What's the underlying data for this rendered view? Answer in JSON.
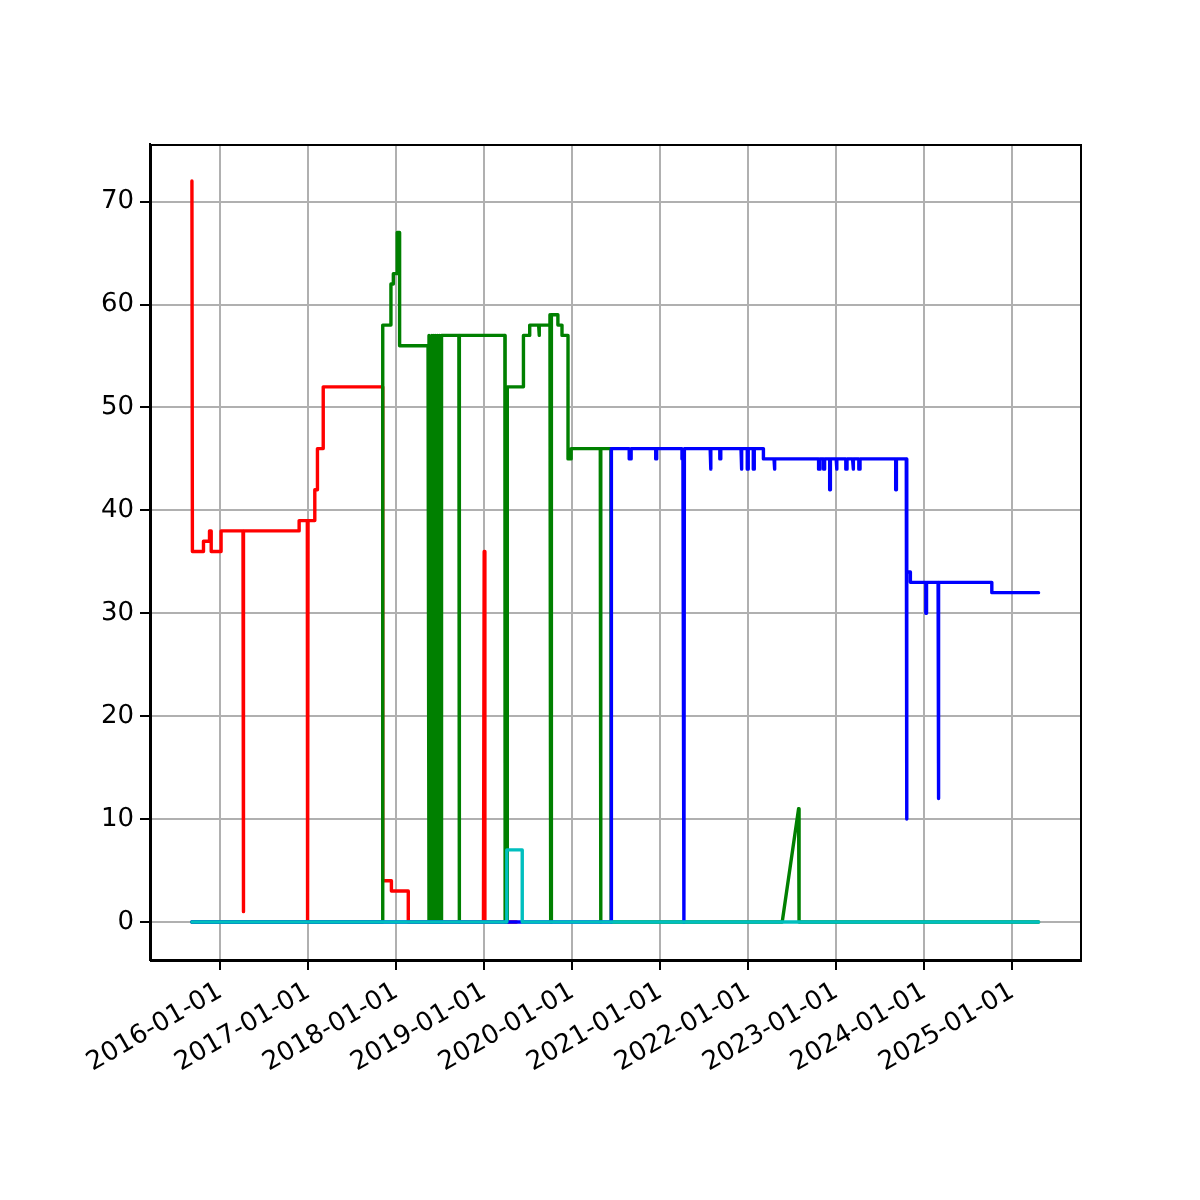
{
  "chart_data": {
    "type": "line",
    "xlim": [
      "2015-03-16",
      "2025-10-09"
    ],
    "ylim": [
      -3.7,
      75.6
    ],
    "xticks": [
      "2016-01-01",
      "2017-01-01",
      "2018-01-01",
      "2019-01-01",
      "2020-01-01",
      "2021-01-01",
      "2022-01-01",
      "2023-01-01",
      "2024-01-01",
      "2025-01-01"
    ],
    "yticks": [
      0,
      10,
      20,
      30,
      40,
      50,
      60,
      70
    ],
    "grid": true,
    "legend": false,
    "marker": "none",
    "series": [
      {
        "color": "#ff0000",
        "x": [
          "2015-09-06",
          "2015-09-08",
          "2015-10-24",
          "2015-10-24",
          "2015-11-18",
          "2015-11-18",
          "2015-11-25",
          "2015-11-25",
          "2016-01-05",
          "2016-01-05",
          "2016-04-05",
          "2016-04-06",
          "2016-04-08",
          "2016-11-24",
          "2016-11-24",
          "2016-12-28",
          "2016-12-29",
          "2016-12-31",
          "2017-01-28",
          "2017-01-28",
          "2017-02-08",
          "2017-02-08",
          "2017-03-04",
          "2017-03-04",
          "2017-11-06",
          "2017-11-06",
          "2017-12-12",
          "2017-12-12",
          "2018-02-20",
          "2018-02-20",
          "2018-12-29",
          "2019-01-01",
          "2019-01-04",
          "2019-05-15"
        ],
        "values": [
          72,
          36,
          36,
          37,
          37,
          38,
          38,
          36,
          36,
          38,
          38,
          1,
          38,
          38,
          39,
          39,
          0,
          39,
          39,
          42,
          42,
          46,
          46,
          52,
          52,
          4,
          4,
          3,
          3,
          0,
          0,
          36,
          0,
          0
        ]
      },
      {
        "color": "#008000",
        "x": [
          "2015-09-06",
          "2017-11-06",
          "2017-11-06",
          "2017-12-10",
          "2017-12-10",
          "2017-12-20",
          "2017-12-20",
          "2018-01-05",
          "2018-01-05",
          "2018-01-15",
          "2018-01-15",
          "2018-05-13",
          "2018-05-13",
          "2018-05-17",
          "2018-05-21",
          "2018-05-25",
          "2018-05-29",
          "2018-06-02",
          "2018-06-06",
          "2018-06-10",
          "2018-06-14",
          "2018-06-18",
          "2018-06-22",
          "2018-06-26",
          "2018-06-30",
          "2018-07-04",
          "2018-07-08",
          "2018-09-18",
          "2018-09-19",
          "2018-09-21",
          "2019-03-28",
          "2019-03-28",
          "2019-03-30",
          "2019-04-07",
          "2019-04-07",
          "2019-06-13",
          "2019-06-13",
          "2019-07-09",
          "2019-07-09",
          "2019-08-15",
          "2019-08-15",
          "2019-08-19",
          "2019-08-19",
          "2019-10-01",
          "2019-10-01",
          "2019-10-04",
          "2019-10-07",
          "2019-11-03",
          "2019-11-03",
          "2019-11-20",
          "2019-11-20",
          "2019-12-15",
          "2019-12-15",
          "2019-12-28",
          "2019-12-28",
          "2020-04-27",
          "2020-04-28",
          "2020-04-30",
          "2020-06-10",
          "2020-06-11",
          "2022-05-22",
          "2022-07-29",
          "2022-07-31",
          "2025-04-20"
        ],
        "values": [
          0,
          0,
          58,
          58,
          62,
          62,
          63,
          63,
          67,
          67,
          56,
          56,
          57,
          0,
          57,
          0,
          57,
          0,
          57,
          0,
          57,
          0,
          57,
          0,
          57,
          0,
          57,
          57,
          0,
          57,
          57,
          0,
          0,
          0,
          52,
          52,
          57,
          57,
          58,
          58,
          57,
          57,
          58,
          58,
          59,
          0,
          59,
          59,
          58,
          58,
          57,
          57,
          45,
          45,
          46,
          46,
          0,
          46,
          46,
          0,
          0,
          11,
          0,
          0
        ]
      },
      {
        "color": "#0000ff",
        "x": [
          "2015-09-06",
          "2020-06-12",
          "2020-06-12",
          "2020-08-25",
          "2020-08-25",
          "2020-09-02",
          "2020-09-02",
          "2020-12-13",
          "2020-12-13",
          "2020-12-17",
          "2020-12-17",
          "2021-04-01",
          "2021-04-01",
          "2021-04-05",
          "2021-04-09",
          "2021-04-11",
          "2021-07-27",
          "2021-07-27",
          "2021-07-31",
          "2021-07-31",
          "2021-09-05",
          "2021-09-05",
          "2021-09-09",
          "2021-09-09",
          "2021-12-02",
          "2021-12-02",
          "2021-12-06",
          "2021-12-06",
          "2021-12-28",
          "2021-12-28",
          "2022-01-01",
          "2022-01-01",
          "2022-01-22",
          "2022-01-22",
          "2022-01-26",
          "2022-01-26",
          "2022-03-05",
          "2022-03-05",
          "2022-04-18",
          "2022-04-18",
          "2022-04-22",
          "2022-04-22",
          "2022-10-20",
          "2022-10-20",
          "2022-10-26",
          "2022-10-26",
          "2022-11-10",
          "2022-11-10",
          "2022-11-14",
          "2022-11-14",
          "2022-12-05",
          "2022-12-05",
          "2022-12-08",
          "2022-12-08",
          "2023-01-01",
          "2023-01-01",
          "2023-01-05",
          "2023-01-05",
          "2023-02-10",
          "2023-02-10",
          "2023-02-15",
          "2023-02-15",
          "2023-03-10",
          "2023-03-10",
          "2023-03-15",
          "2023-03-15",
          "2023-04-05",
          "2023-04-05",
          "2023-04-10",
          "2023-04-10",
          "2023-09-05",
          "2023-09-05",
          "2023-09-08",
          "2023-09-08",
          "2023-10-19",
          "2023-10-20",
          "2023-10-22",
          "2023-11-05",
          "2023-11-05",
          "2024-01-08",
          "2024-01-08",
          "2024-01-11",
          "2024-01-11",
          "2024-02-28",
          "2024-02-29",
          "2024-03-02",
          "2024-10-08",
          "2024-10-08",
          "2025-04-20"
        ],
        "values": [
          0,
          0,
          46,
          46,
          45,
          45,
          46,
          46,
          45,
          45,
          46,
          46,
          45,
          45,
          0,
          46,
          46,
          44,
          44,
          46,
          46,
          45,
          45,
          46,
          46,
          44,
          44,
          46,
          46,
          44,
          44,
          46,
          46,
          44,
          44,
          46,
          46,
          45,
          45,
          44,
          44,
          45,
          45,
          44,
          44,
          45,
          45,
          44,
          44,
          45,
          45,
          42,
          42,
          45,
          45,
          44,
          44,
          45,
          45,
          44,
          44,
          45,
          45,
          44,
          44,
          45,
          45,
          44,
          44,
          45,
          45,
          42,
          42,
          45,
          45,
          10,
          34,
          34,
          33,
          33,
          30,
          30,
          33,
          33,
          12,
          33,
          33,
          32,
          32
        ]
      },
      {
        "color": "#00bfbf",
        "x": [
          "2015-09-06",
          "2019-04-05",
          "2019-04-05",
          "2019-06-08",
          "2019-06-08",
          "2025-04-20"
        ],
        "values": [
          0,
          0,
          7,
          7,
          0,
          0
        ]
      }
    ]
  }
}
